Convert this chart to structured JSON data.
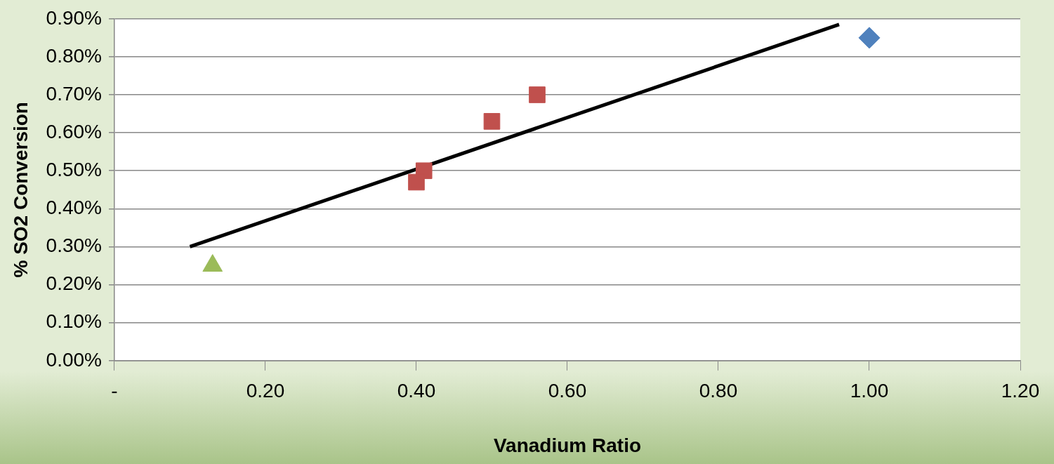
{
  "chart_data": {
    "type": "scatter",
    "xlabel": "Vanadium Ratio",
    "ylabel": "% SO2 Conversion",
    "xlim": [
      0,
      1.2
    ],
    "ylim": [
      0,
      0.9
    ],
    "xticks": [
      {
        "value": 0,
        "label": "-"
      },
      {
        "value": 0.2,
        "label": "0.20"
      },
      {
        "value": 0.4,
        "label": "0.40"
      },
      {
        "value": 0.6,
        "label": "0.60"
      },
      {
        "value": 0.8,
        "label": "0.80"
      },
      {
        "value": 1,
        "label": "1.00"
      },
      {
        "value": 1.2,
        "label": "1.20"
      }
    ],
    "yticks": [
      {
        "value": 0,
        "label": "0.00%"
      },
      {
        "value": 0.1,
        "label": "0.10%"
      },
      {
        "value": 0.2,
        "label": "0.20%"
      },
      {
        "value": 0.3,
        "label": "0.30%"
      },
      {
        "value": 0.4,
        "label": "0.40%"
      },
      {
        "value": 0.5,
        "label": "0.50%"
      },
      {
        "value": 0.6,
        "label": "0.60%"
      },
      {
        "value": 0.7,
        "label": "0.70%"
      },
      {
        "value": 0.8,
        "label": "0.80%"
      },
      {
        "value": 0.9,
        "label": "0.90%"
      }
    ],
    "grid": "y",
    "legend": false,
    "series": [
      {
        "marker": "diamond",
        "color": "#4f81bd",
        "x": [
          1.0
        ],
        "values": [
          0.85
        ]
      },
      {
        "marker": "square",
        "color": "#c0504d",
        "x": [
          0.56,
          0.5,
          0.41,
          0.4
        ],
        "values": [
          0.7,
          0.63,
          0.5,
          0.47
        ]
      },
      {
        "marker": "triangle",
        "color": "#9bbb59",
        "x": [
          0.13
        ],
        "values": [
          0.25
        ]
      },
      {
        "type": "line",
        "marker": "none",
        "line_style": "solid",
        "color": "#000000",
        "x": [
          0.1,
          0.96
        ],
        "values": [
          0.3,
          0.885
        ]
      }
    ]
  }
}
